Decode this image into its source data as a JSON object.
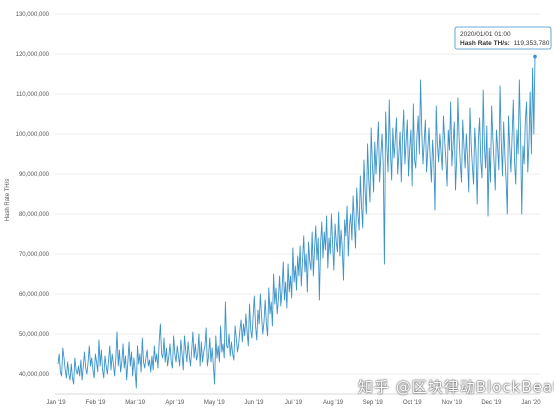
{
  "watermark": "知乎 @区块律动BlockBeats",
  "chart_data": {
    "type": "line",
    "ylabel": "Hash Rate TH/s",
    "ylim": [
      35000000,
      130000000
    ],
    "y_ticks": [
      "40,000,000",
      "50,000,000",
      "60,000,000",
      "70,000,000",
      "80,000,000",
      "90,000,000",
      "100,000,000",
      "110,000,000",
      "120,000,000",
      "130,000,000"
    ],
    "x_ticks": [
      "Jan '19",
      "Feb '19",
      "Mar '19",
      "Apr '19",
      "May '19",
      "Jun '19",
      "Jul '19",
      "Aug '19",
      "Sep '19",
      "Oct '19",
      "Nov '19",
      "Dec '19",
      "Jan '20"
    ],
    "grid": true,
    "color": "#3b93c8",
    "tooltip": {
      "date": "2020/01/01 01:00",
      "label": "Hash Rate TH/s:",
      "value": "119,353,780"
    },
    "series": [
      {
        "values": [
          42500000,
          45000000,
          40500000,
          39500000,
          46500000,
          44000000,
          41000000,
          39000000,
          43000000,
          40000000,
          38500000,
          42500000,
          39000000,
          37500000,
          44000000,
          41000000,
          40000000,
          42000000,
          39500000,
          43500000,
          38500000,
          42000000,
          45500000,
          41500000,
          40000000,
          43000000,
          47000000,
          42000000,
          44000000,
          41000000,
          39000000,
          45000000,
          43000000,
          40500000,
          48500000,
          42000000,
          46000000,
          41000000,
          39000000,
          44500000,
          42000000,
          40000000,
          43500000,
          47000000,
          41000000,
          45000000,
          42500000,
          39500000,
          44000000,
          50500000,
          42000000,
          46000000,
          40500000,
          43000000,
          47500000,
          41500000,
          44500000,
          38500000,
          43000000,
          48000000,
          42000000,
          45500000,
          39500000,
          44000000,
          41000000,
          36500000,
          47000000,
          42500000,
          45000000,
          40500000,
          49000000,
          43000000,
          41500000,
          44000000,
          46000000,
          42000000,
          43500000,
          40500000,
          44500000,
          41000000,
          47000000,
          43000000,
          45000000,
          41500000,
          48000000,
          52500000,
          45000000,
          44000000,
          49000000,
          43000000,
          46500000,
          42000000,
          44500000,
          47500000,
          43000000,
          41500000,
          49500000,
          45000000,
          43000000,
          47000000,
          44500000,
          42000000,
          48500000,
          45000000,
          41000000,
          49500000,
          46000000,
          43000000,
          48000000,
          44500000,
          42000000,
          46000000,
          50500000,
          44000000,
          47500000,
          43500000,
          45000000,
          50000000,
          42000000,
          48000000,
          43000000,
          45500000,
          47000000,
          51500000,
          42000000,
          44500000,
          49000000,
          43000000,
          46500000,
          42000000,
          37500000,
          49500000,
          44000000,
          47000000,
          43000000,
          52000000,
          45500000,
          47500000,
          44000000,
          58000000,
          47000000,
          46500000,
          50000000,
          44500000,
          48000000,
          45000000,
          43500000,
          52000000,
          49000000,
          45500000,
          47500000,
          51000000,
          53500000,
          48000000,
          52500000,
          49500000,
          55000000,
          50500000,
          47000000,
          57500000,
          51000000,
          49000000,
          54500000,
          59500000,
          52000000,
          48500000,
          56000000,
          52500000,
          60000000,
          54500000,
          50000000,
          53000000,
          58500000,
          52500000,
          49500000,
          61500000,
          55000000,
          58000000,
          52000000,
          65000000,
          57500000,
          61500000,
          55000000,
          59000000,
          64500000,
          57000000,
          61000000,
          68000000,
          58500000,
          63000000,
          56500000,
          67500000,
          60500000,
          64500000,
          59000000,
          71500000,
          63000000,
          67000000,
          61000000,
          69500000,
          64500000,
          72000000,
          62000000,
          68500000,
          74500000,
          65500000,
          70000000,
          60500000,
          73000000,
          68000000,
          66000000,
          75500000,
          64500000,
          71500000,
          77000000,
          68500000,
          74000000,
          58500000,
          72500000,
          78000000,
          69000000,
          75500000,
          71000000,
          79500000,
          66500000,
          74000000,
          70000000,
          80000000,
          72500000,
          66000000,
          77500000,
          73000000,
          70500000,
          80500000,
          69500000,
          76000000,
          71500000,
          63500000,
          78500000,
          74500000,
          82000000,
          69500000,
          77000000,
          80000000,
          73500000,
          84500000,
          78000000,
          71500000,
          86500000,
          80000000,
          76000000,
          89500000,
          82000000,
          76500000,
          93500000,
          85500000,
          80000000,
          97500000,
          88500000,
          83000000,
          101500000,
          92500000,
          85500000,
          98000000,
          90000000,
          96500000,
          103000000,
          88000000,
          94500000,
          100000000,
          92500000,
          67500000,
          105500000,
          97000000,
          90500000,
          108500000,
          95500000,
          88500000,
          101500000,
          94000000,
          98500000,
          104000000,
          90000000,
          95000000,
          100500000,
          88000000,
          99000000,
          106000000,
          92500000,
          98000000,
          103500000,
          89500000,
          96500000,
          101000000,
          87000000,
          107500000,
          93500000,
          91500000,
          99500000,
          104500000,
          95000000,
          113500000,
          100500000,
          92500000,
          98000000,
          103500000,
          90500000,
          96000000,
          101500000,
          94000000,
          88000000,
          98500000,
          93000000,
          81000000,
          107000000,
          97500000,
          93000000,
          100000000,
          95500000,
          91000000,
          104500000,
          98500000,
          93500000,
          87000000,
          101000000,
          96000000,
          108000000,
          92000000,
          97500000,
          103000000,
          86000000,
          94000000,
          109000000,
          99000000,
          92500000,
          88000000,
          103500000,
          97000000,
          91500000,
          100000000,
          94000000,
          85500000,
          106500000,
          97500000,
          92000000,
          87500000,
          101500000,
          95500000,
          82500000,
          98500000,
          104000000,
          93000000,
          89000000,
          111000000,
          97000000,
          91500000,
          102000000,
          79500000,
          96500000,
          88000000,
          107000000,
          99000000,
          93000000,
          86000000,
          101000000,
          96500000,
          91000000,
          112000000,
          98000000,
          89500000,
          103000000,
          94500000,
          88500000,
          80000000,
          104500000,
          97000000,
          90500000,
          99500000,
          108500000,
          93000000,
          87500000,
          101000000,
          95000000,
          113500000,
          99500000,
          80000000,
          97000000,
          92500000,
          103500000,
          108000000,
          90500000,
          98000000,
          110500000,
          95000000,
          116500000,
          100000000,
          119353780
        ]
      }
    ]
  }
}
